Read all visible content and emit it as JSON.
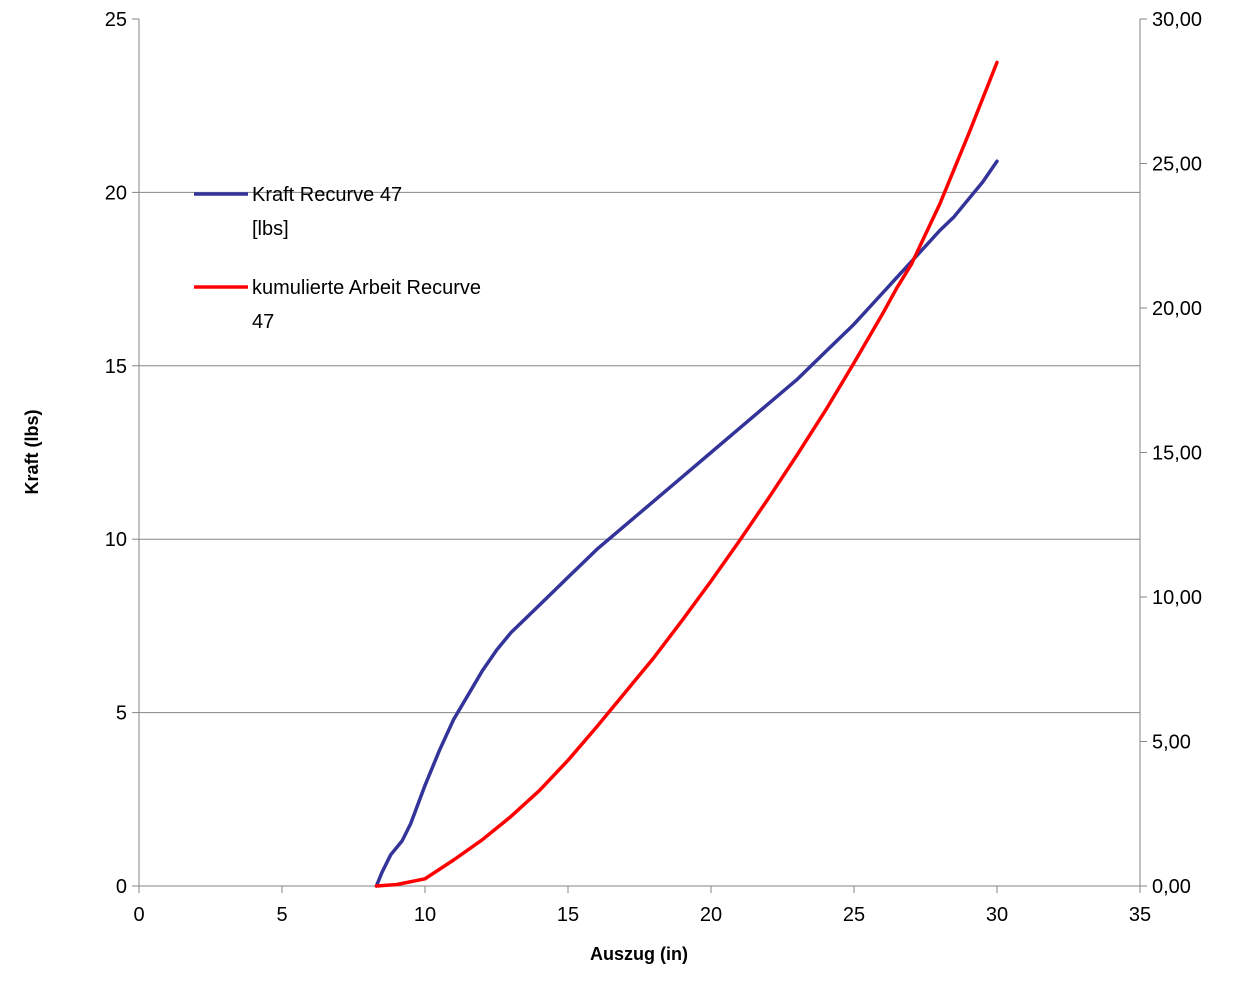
{
  "chart_data": {
    "type": "line",
    "title": "",
    "xlabel": "Auszug (in)",
    "ylabel": "Kraft (lbs)",
    "y2label": "",
    "xlim": [
      0,
      35
    ],
    "ylim": [
      0,
      25
    ],
    "y2lim": [
      0,
      30
    ],
    "x_ticks": [
      "0",
      "5",
      "10",
      "15",
      "20",
      "25",
      "30",
      "35"
    ],
    "y_ticks": [
      "0",
      "5",
      "10",
      "15",
      "20",
      "25"
    ],
    "y2_ticks": [
      "0,00",
      "5,00",
      "10,00",
      "15,00",
      "20,00",
      "25,00",
      "30,00"
    ],
    "grid": "horizontal",
    "legend_position": "upper-left",
    "series": [
      {
        "name": "Kraft Recurve 47 [lbs]",
        "legend_lines": [
          "Kraft Recurve 47",
          "[lbs]"
        ],
        "color": "#333399",
        "axis": "left",
        "x": [
          8.3,
          8.5,
          8.8,
          9.2,
          9.5,
          10.0,
          10.5,
          11.0,
          11.5,
          12.0,
          12.5,
          13.0,
          13.5,
          14.0,
          14.5,
          15.0,
          15.5,
          16.0,
          17.0,
          18.0,
          19.0,
          20.0,
          21.0,
          22.0,
          23.0,
          24.0,
          25.0,
          26.0,
          27.0,
          28.0,
          28.5,
          29.0,
          29.5,
          30.0
        ],
        "y": [
          0.0,
          0.4,
          0.9,
          1.3,
          1.8,
          2.9,
          3.9,
          4.8,
          5.5,
          6.2,
          6.8,
          7.3,
          7.7,
          8.1,
          8.5,
          8.9,
          9.3,
          9.7,
          10.4,
          11.1,
          11.8,
          12.5,
          13.2,
          13.9,
          14.6,
          15.4,
          16.2,
          17.1,
          18.0,
          18.9,
          19.3,
          19.8,
          20.3,
          20.9
        ]
      },
      {
        "name": "kumulierte Arbeit Recurve 47",
        "legend_lines": [
          "kumulierte Arbeit Recurve",
          "47"
        ],
        "color": "#ff0000",
        "axis": "right",
        "x": [
          8.3,
          9.0,
          10.0,
          11.0,
          12.0,
          13.0,
          14.0,
          15.0,
          16.0,
          17.0,
          18.0,
          19.0,
          20.0,
          21.0,
          22.0,
          23.0,
          24.0,
          25.0,
          26.0,
          26.5,
          27.0,
          28.0,
          29.0,
          30.0
        ],
        "y": [
          0.0,
          0.05,
          0.25,
          0.9,
          1.6,
          2.4,
          3.3,
          4.35,
          5.5,
          6.7,
          7.9,
          9.2,
          10.55,
          11.95,
          13.4,
          14.9,
          16.45,
          18.1,
          19.8,
          20.7,
          21.5,
          23.6,
          26.0,
          28.5
        ]
      }
    ]
  }
}
